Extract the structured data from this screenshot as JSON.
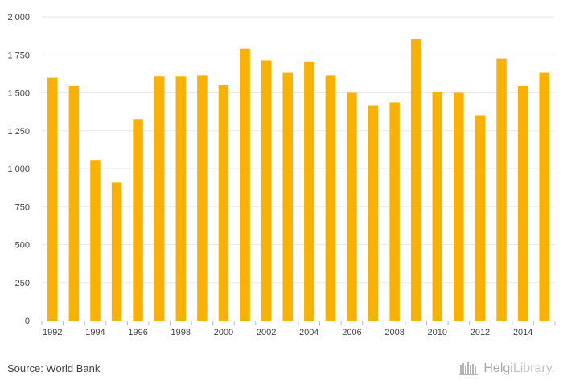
{
  "chart_data": {
    "type": "bar",
    "title": "",
    "xlabel": "",
    "ylabel": "",
    "categories": [
      "1992",
      "1993",
      "1994",
      "1995",
      "1996",
      "1997",
      "1998",
      "1999",
      "2000",
      "2001",
      "2002",
      "2003",
      "2004",
      "2005",
      "2006",
      "2007",
      "2008",
      "2009",
      "2010",
      "2011",
      "2012",
      "2013",
      "2014",
      "2015"
    ],
    "x_tick_labels": [
      "1992",
      "1994",
      "1996",
      "1998",
      "2000",
      "2002",
      "2004",
      "2006",
      "2008",
      "2010",
      "2012",
      "2014"
    ],
    "values": [
      1600,
      1545,
      1057,
      908,
      1327,
      1607,
      1607,
      1617,
      1550,
      1790,
      1712,
      1632,
      1705,
      1617,
      1500,
      1415,
      1437,
      1855,
      1507,
      1500,
      1352,
      1727,
      1545,
      1632
    ],
    "ylim": [
      0,
      2000
    ],
    "y_ticks": [
      0,
      250,
      500,
      750,
      1000,
      1250,
      1500,
      1750,
      2000
    ],
    "y_tick_labels": [
      "0",
      "250",
      "500",
      "750",
      "1 000",
      "1 250",
      "1 500",
      "1 750",
      "2 000"
    ],
    "grid": true,
    "colors": {
      "bar": "#FBB104",
      "grid": "#e8e8e8",
      "axis": "#bbbbbb"
    }
  },
  "footer": {
    "source": "Source: World Bank",
    "logo_part1": "Helgi",
    "logo_part2": "Library",
    "logo_dot": "."
  }
}
